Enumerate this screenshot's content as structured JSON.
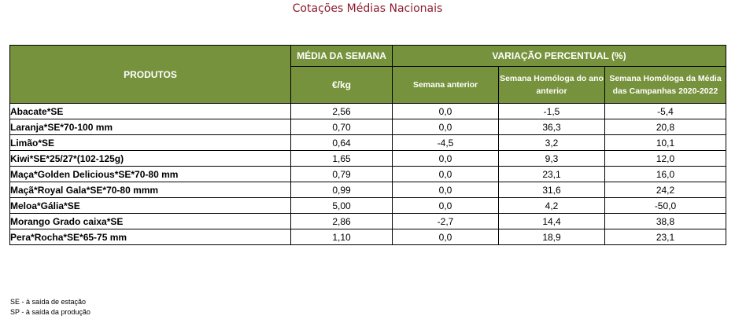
{
  "title": "Cotações Médias Nacionais",
  "headers": {
    "produtos": "PRODUTOS",
    "media_semana": "MÉDIA DA SEMANA",
    "unidade": "€/kg",
    "variacao": "VARIAÇÃO PERCENTUAL (%)",
    "semana_anterior": "Semana anterior",
    "homologa_ano_anterior": "Semana Homóloga do ano anterior",
    "homologa_campanhas": "Semana Homóloga da Média das Campanhas 2020-2022"
  },
  "rows": [
    {
      "produto": "Abacate*SE",
      "media": "2,56",
      "var_semana": "0,0",
      "var_ano": "-1,5",
      "var_campanhas": "-5,4"
    },
    {
      "produto": "Laranja*SE*70-100 mm",
      "media": "0,70",
      "var_semana": "0,0",
      "var_ano": "36,3",
      "var_campanhas": "20,8"
    },
    {
      "produto": "Limão*SE",
      "media": "0,64",
      "var_semana": "-4,5",
      "var_ano": "3,2",
      "var_campanhas": "10,1"
    },
    {
      "produto": "Kiwi*SE*25/27*(102-125g)",
      "media": "1,65",
      "var_semana": "0,0",
      "var_ano": "9,3",
      "var_campanhas": "12,0"
    },
    {
      "produto": "Maça*Golden Delicious*SE*70-80 mm",
      "media": "0,79",
      "var_semana": "0,0",
      "var_ano": "23,1",
      "var_campanhas": "16,0"
    },
    {
      "produto": "Maçã*Royal Gala*SE*70-80 mmm",
      "media": "0,99",
      "var_semana": "0,0",
      "var_ano": "31,6",
      "var_campanhas": "24,2"
    },
    {
      "produto": "Meloa*Gália*SE",
      "media": "5,00",
      "var_semana": "0,0",
      "var_ano": "4,2",
      "var_campanhas": "-50,0"
    },
    {
      "produto": "Morango Grado caixa*SE",
      "media": "2,86",
      "var_semana": "-2,7",
      "var_ano": "14,4",
      "var_campanhas": "38,8"
    },
    {
      "produto": "Pera*Rocha*SE*65-75 mm",
      "media": "1,10",
      "var_semana": "0,0",
      "var_ano": "18,9",
      "var_campanhas": "23,1"
    }
  ],
  "notes": [
    "SE - à saída de estação",
    "SP - à saída da produção"
  ],
  "colors": {
    "header_bg": "#76923c",
    "title": "#8c1c2e"
  }
}
